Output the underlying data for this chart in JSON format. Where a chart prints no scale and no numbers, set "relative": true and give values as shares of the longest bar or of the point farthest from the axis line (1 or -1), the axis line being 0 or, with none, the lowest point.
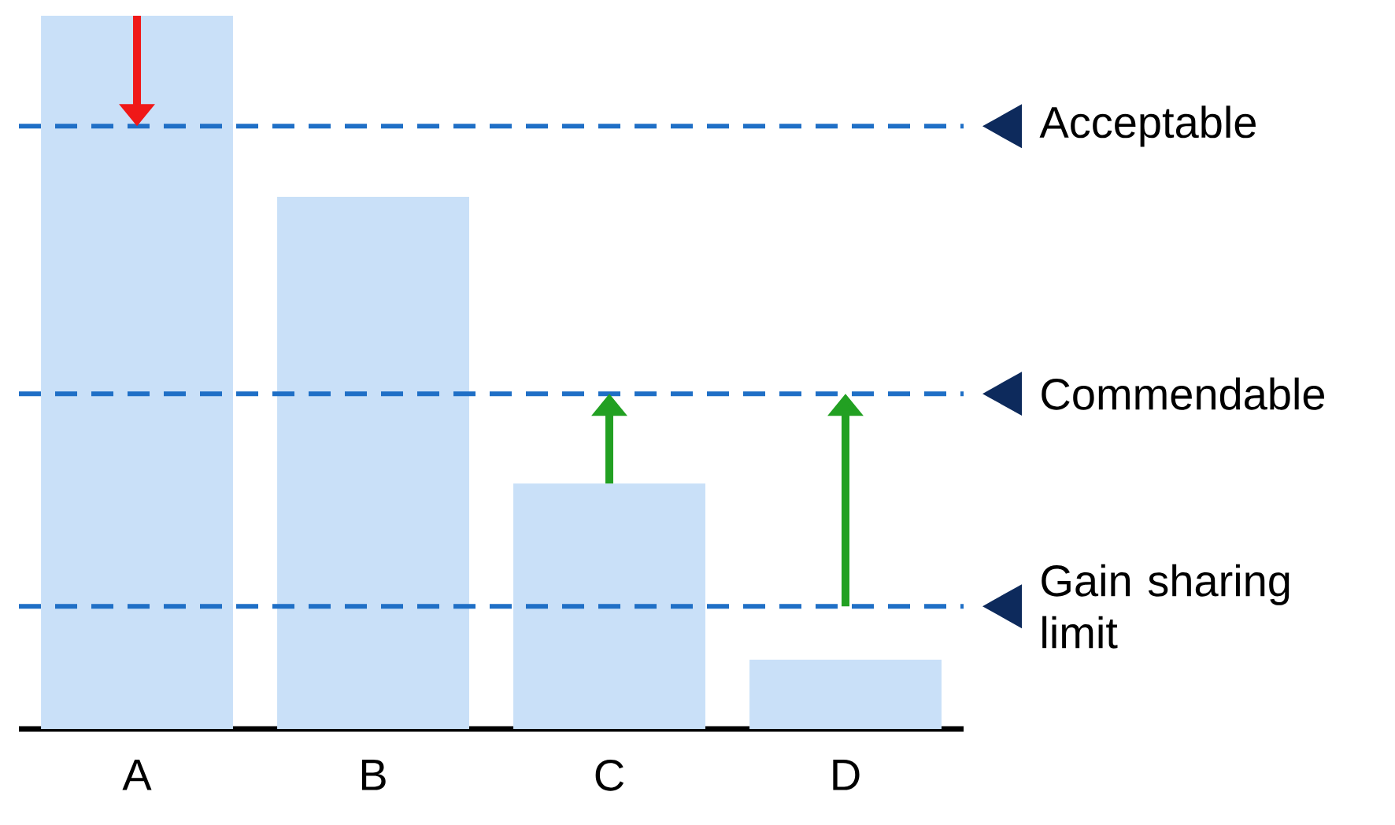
{
  "chart_data": {
    "type": "bar",
    "relative": true,
    "categories": [
      "A",
      "B",
      "C",
      "D"
    ],
    "values": [
      1,
      0.746,
      0.344,
      0.097
    ],
    "color": "#c9e0f8",
    "ref_lines": [
      {
        "axis": "y",
        "value": 0.845,
        "label": "Acceptable",
        "color": "#1f6fc6",
        "line_style": "dashed"
      },
      {
        "axis": "y",
        "value": 0.47,
        "label": "Commendable",
        "color": "#1f6fc6",
        "line_style": "dashed"
      },
      {
        "axis": "y",
        "value": 0.172,
        "label": "Gain sharing limit",
        "color": "#1f6fc6",
        "line_style": "dashed"
      }
    ]
  }
}
